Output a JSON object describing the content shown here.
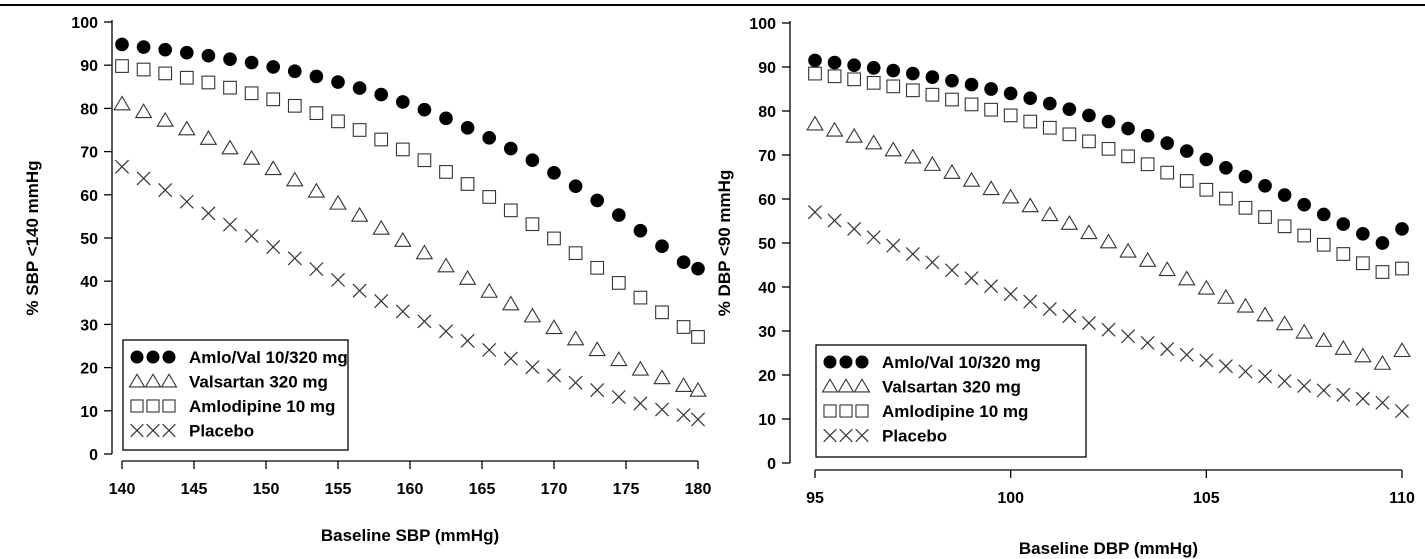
{
  "chart_data": [
    {
      "type": "scatter",
      "xlabel": "Baseline SBP (mmHg)",
      "ylabel": "% SBP <140 mmHg",
      "xlim": [
        140,
        180
      ],
      "ylim": [
        0,
        100
      ],
      "xticks": [
        "140",
        "145",
        "150",
        "155",
        "160",
        "165",
        "170",
        "175",
        "180"
      ],
      "yticks": [
        "0",
        "10",
        "20",
        "30",
        "40",
        "50",
        "60",
        "70",
        "80",
        "90",
        "100"
      ],
      "legend_position": "bottom-left",
      "x": [
        140,
        141.5,
        143,
        144.5,
        146,
        147.5,
        149,
        150.5,
        152,
        153.5,
        155,
        156.5,
        158,
        159.5,
        161,
        162.5,
        164,
        165.5,
        167,
        168.5,
        170,
        171.5,
        173,
        174.5,
        176,
        177.5,
        179,
        180
      ],
      "series": [
        {
          "name": "Amlo/Val 10/320 mg",
          "marker": "filled-circle",
          "values": [
            94.8,
            94.2,
            93.6,
            92.9,
            92.2,
            91.4,
            90.6,
            89.6,
            88.6,
            87.4,
            86.1,
            84.7,
            83.2,
            81.5,
            79.7,
            77.7,
            75.5,
            73.2,
            70.7,
            68.0,
            65.1,
            62.0,
            58.7,
            55.3,
            51.7,
            48.1,
            44.4,
            42.9
          ]
        },
        {
          "name": "Valsartan 320 mg",
          "marker": "open-triangle",
          "values": [
            81.0,
            79.2,
            77.2,
            75.2,
            73.0,
            70.8,
            68.4,
            66.0,
            63.4,
            60.8,
            58.0,
            55.2,
            52.2,
            49.4,
            46.5,
            43.5,
            40.6,
            37.6,
            34.7,
            31.9,
            29.2,
            26.6,
            24.1,
            21.8,
            19.6,
            17.6,
            15.8,
            14.7
          ]
        },
        {
          "name": "Amlodipine 10 mg",
          "marker": "open-square",
          "values": [
            89.8,
            89.0,
            88.1,
            87.1,
            86.0,
            84.8,
            83.5,
            82.1,
            80.6,
            78.9,
            77.0,
            75.0,
            72.8,
            70.5,
            68.0,
            65.3,
            62.5,
            59.5,
            56.4,
            53.2,
            49.9,
            46.5,
            43.1,
            39.6,
            36.2,
            32.8,
            29.4,
            27.1
          ]
        },
        {
          "name": "Placebo",
          "marker": "cross",
          "values": [
            66.5,
            63.8,
            61.1,
            58.4,
            55.7,
            53.1,
            50.5,
            47.9,
            45.3,
            42.8,
            40.3,
            37.8,
            35.4,
            33.0,
            30.7,
            28.4,
            26.2,
            24.1,
            22.1,
            20.1,
            18.2,
            16.5,
            14.8,
            13.2,
            11.7,
            10.3,
            9.0,
            8.0
          ]
        }
      ]
    },
    {
      "type": "scatter",
      "xlabel": "Baseline DBP (mmHg)",
      "ylabel": "% DBP <90  mmHg",
      "xlim": [
        95,
        110
      ],
      "ylim": [
        0,
        100
      ],
      "xticks": [
        "95",
        "100",
        "105",
        "110"
      ],
      "yticks": [
        "0",
        "10",
        "20",
        "30",
        "40",
        "50",
        "60",
        "70",
        "80",
        "90",
        "100"
      ],
      "legend_position": "bottom-left",
      "x": [
        95,
        95.5,
        96,
        96.5,
        97,
        97.5,
        98,
        98.5,
        99,
        99.5,
        100,
        100.5,
        101,
        101.5,
        102,
        102.5,
        103,
        103.5,
        104,
        104.5,
        105,
        105.5,
        106,
        106.5,
        107,
        107.5,
        108,
        108.5,
        109,
        109.5,
        110
      ],
      "series": [
        {
          "name": "Amlo/Val 10/320 mg",
          "marker": "filled-circle",
          "values": [
            91.5,
            91.0,
            90.4,
            89.8,
            89.2,
            88.5,
            87.7,
            86.9,
            86.0,
            85.0,
            84.0,
            82.9,
            81.7,
            80.4,
            79.0,
            77.6,
            76.0,
            74.4,
            72.7,
            70.9,
            69.0,
            67.1,
            65.1,
            63.0,
            60.9,
            58.7,
            56.5,
            54.3,
            52.1,
            50.0,
            53.2
          ]
        },
        {
          "name": "Valsartan 320 mg",
          "marker": "open-triangle",
          "values": [
            77.0,
            75.6,
            74.2,
            72.7,
            71.1,
            69.5,
            67.8,
            66.0,
            64.2,
            62.3,
            60.4,
            58.4,
            56.4,
            54.4,
            52.3,
            50.2,
            48.1,
            46.0,
            43.9,
            41.8,
            39.7,
            37.6,
            35.6,
            33.6,
            31.6,
            29.7,
            27.8,
            26.0,
            24.3,
            22.6,
            25.5
          ]
        },
        {
          "name": "Amlodipine 10 mg",
          "marker": "open-square",
          "values": [
            88.5,
            87.9,
            87.2,
            86.4,
            85.6,
            84.7,
            83.7,
            82.6,
            81.5,
            80.3,
            79.0,
            77.6,
            76.2,
            74.7,
            73.1,
            71.4,
            69.7,
            67.9,
            66.0,
            64.1,
            62.1,
            60.1,
            58.0,
            55.9,
            53.8,
            51.7,
            49.6,
            47.5,
            45.4,
            43.4,
            44.2
          ]
        },
        {
          "name": "Placebo",
          "marker": "cross",
          "values": [
            57.0,
            55.1,
            53.2,
            51.3,
            49.4,
            47.5,
            45.6,
            43.8,
            42.0,
            40.2,
            38.4,
            36.7,
            35.0,
            33.4,
            31.8,
            30.3,
            28.8,
            27.3,
            25.9,
            24.6,
            23.3,
            22.0,
            20.8,
            19.7,
            18.6,
            17.5,
            16.5,
            15.5,
            14.6,
            13.7,
            11.8
          ]
        }
      ]
    }
  ]
}
